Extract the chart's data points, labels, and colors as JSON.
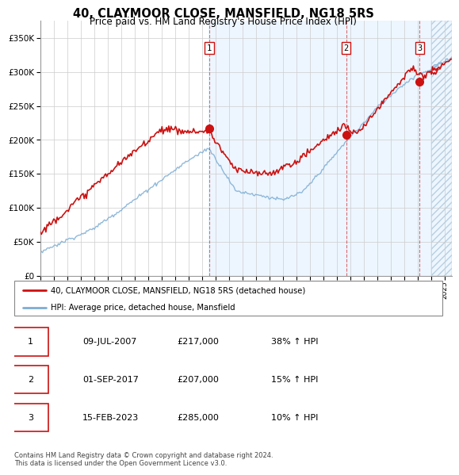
{
  "title": "40, CLAYMOOR CLOSE, MANSFIELD, NG18 5RS",
  "subtitle": "Price paid vs. HM Land Registry's House Price Index (HPI)",
  "ytick_values": [
    0,
    50000,
    100000,
    150000,
    200000,
    250000,
    300000,
    350000
  ],
  "ylim": [
    0,
    375000
  ],
  "xlim_start": 1995.0,
  "xlim_end": 2025.5,
  "future_start": 2024.0,
  "shaded_start": 2007.5,
  "sale_dates": [
    2007.53,
    2017.67,
    2023.12
  ],
  "sale_prices": [
    217000,
    207000,
    285000
  ],
  "sale_labels": [
    "1",
    "2",
    "3"
  ],
  "legend_entries": [
    "40, CLAYMOOR CLOSE, MANSFIELD, NG18 5RS (detached house)",
    "HPI: Average price, detached house, Mansfield"
  ],
  "table_rows": [
    [
      "1",
      "09-JUL-2007",
      "£217,000",
      "38% ↑ HPI"
    ],
    [
      "2",
      "01-SEP-2017",
      "£207,000",
      "15% ↑ HPI"
    ],
    [
      "3",
      "15-FEB-2023",
      "£285,000",
      "10% ↑ HPI"
    ]
  ],
  "footer": "Contains HM Land Registry data © Crown copyright and database right 2024.\nThis data is licensed under the Open Government Licence v3.0.",
  "hpi_color": "#7dadd4",
  "price_color": "#cc1111",
  "grid_color": "#cccccc",
  "background_color": "#ffffff",
  "shaded_color": "#ddeeff",
  "future_hatch_color": "#b8cfe0"
}
